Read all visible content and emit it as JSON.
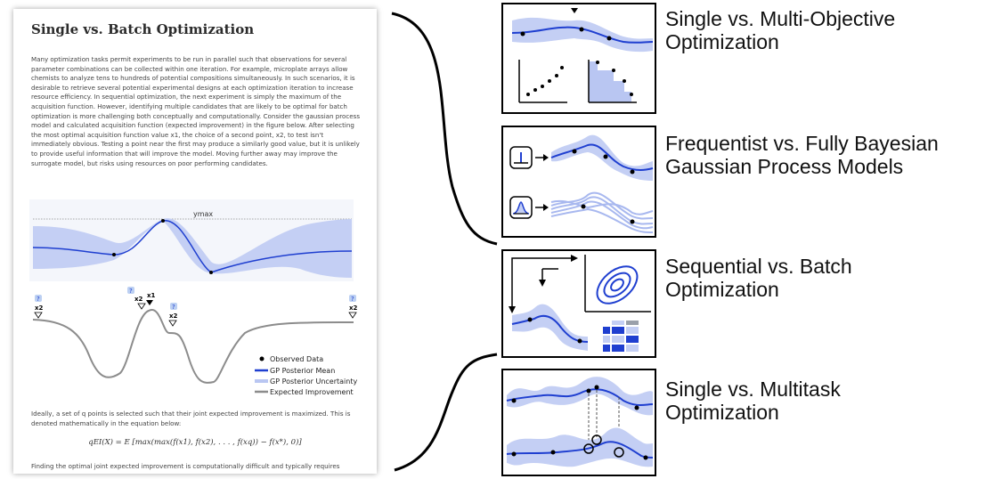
{
  "document": {
    "title": "Single vs. Batch Optimization",
    "paragraph1": "Many optimization tasks permit experiments to be run in parallel such that observations for several parameter combinations can be collected within one iteration. For example, microplate arrays allow chemists to analyze tens to hundreds of potential compositions simultaneously. In such scenarios, it is desirable to retrieve several potential experimental designs at each optimization iteration to increase resource efficiency. In sequential optimization, the next experiment is simply the maximum of the acquisition function. However, identifying multiple candidates that are likely to be optimal for batch optimization is more challenging both conceptually and computationally. Consider the gaussian process model and calculated acquisition function (expected improvement) in the figure below. After selecting the most optimal acquisition function value x1, the choice of a second point, x2, to test isn't immediately obvious. Testing a point near the first may produce a similarly good value, but it is unlikely to provide useful information that will improve the model. Moving further away may improve the surrogate model, but risks using resources on poor performing candidates.",
    "paragraph2": "Ideally, a set of q points is selected such that their joint expected improvement is maximized. This is denoted mathematically in the equation below:",
    "formula": "qEI(X) = E [max(max(f(x1), f(x2), . . . , f(xq)) − f(x*), 0)]",
    "paragraph3": "Finding the optimal joint expected improvement is computationally difficult and typically requires",
    "figure": {
      "ymax_label": "ymax",
      "question_mark": "?",
      "x1_label": "x1",
      "x2_label": "x2",
      "legend": [
        {
          "label": "Observed Data",
          "color": "#000000"
        },
        {
          "label": "GP Posterior Mean",
          "color": "#1f3fd0"
        },
        {
          "label": "GP Posterior Uncertainty",
          "color": "#b9c6f2"
        },
        {
          "label": "Expected Improvement",
          "color": "#8c8c8c"
        }
      ]
    }
  },
  "topics": [
    {
      "line1": "Single vs. Multi-Objective",
      "line2": "Optimization"
    },
    {
      "line1": "Frequentist vs. Fully Bayesian",
      "line2": "Gaussian Process Models"
    },
    {
      "line1": "Sequential vs. Batch",
      "line2": "Optimization"
    },
    {
      "line1": "Single vs. Multitask",
      "line2": "Optimization"
    }
  ],
  "colors": {
    "mean": "#1f3fd0",
    "uncertainty": "#b9c6f2",
    "acquisition": "#8c8c8c"
  }
}
